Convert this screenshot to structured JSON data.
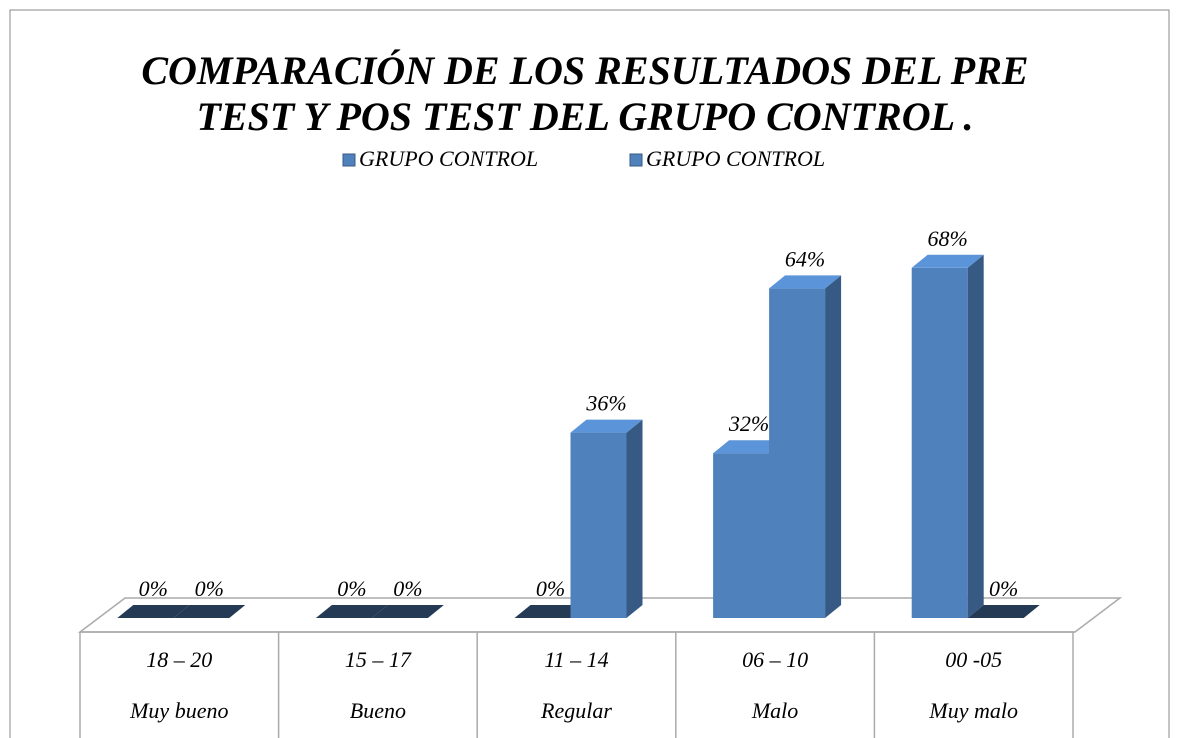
{
  "chart_data": {
    "type": "bar3d",
    "title": [
      "COMPARACIÓN DE LOS RESULTADOS DEL PRE",
      "TEST Y  POS TEST  DEL GRUPO CONTROL ."
    ],
    "categories": [
      [
        "18 – 20",
        "Muy bueno"
      ],
      [
        "15 – 17",
        "Bueno"
      ],
      [
        "11 – 14",
        "Regular"
      ],
      [
        "06 – 10",
        "Malo"
      ],
      [
        "00 -05",
        "Muy malo"
      ]
    ],
    "series": [
      {
        "name": "GRUPO CONTROL",
        "color": "#4f81bd",
        "values": [
          0,
          0,
          0,
          32,
          68
        ],
        "value_labels": [
          "0%",
          "0%",
          "0%",
          "32%",
          "68%"
        ]
      },
      {
        "name": "GRUPO CONTROL",
        "color": "#4f81bd",
        "values": [
          0,
          0,
          36,
          64,
          0
        ],
        "value_labels": [
          "0%",
          "0%",
          "36%",
          "64%",
          "0%"
        ]
      }
    ],
    "legend": "top"
  }
}
